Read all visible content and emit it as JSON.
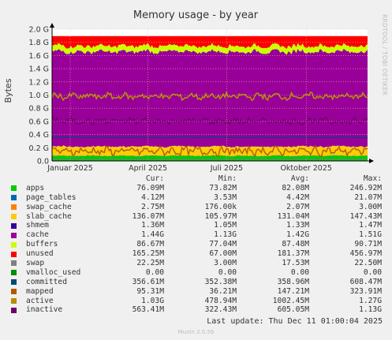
{
  "chart_data": {
    "type": "area",
    "title": "Memory usage - by year",
    "ylabel": "Bytes",
    "side_label": "RRDTOOL / TOBI OETIKER",
    "ylim": [
      0,
      2.0
    ],
    "y_unit": "G",
    "yticks": [
      "0.0",
      "0.2 G",
      "0.4 G",
      "0.6 G",
      "0.8 G",
      "1.0 G",
      "1.2 G",
      "1.4 G",
      "1.6 G",
      "1.8 G",
      "2.0 G"
    ],
    "x_range": [
      "2024-12-11",
      "2025-12-11"
    ],
    "x_ticks": [
      {
        "label": "Januar 2025",
        "date": "2025-01-01"
      },
      {
        "label": "April 2025",
        "date": "2025-04-01"
      },
      {
        "label": "Juli 2025",
        "date": "2025-07-01"
      },
      {
        "label": "Oktober 2025",
        "date": "2025-10-01"
      }
    ],
    "grid": true,
    "legend_placement": "bottom",
    "series": [
      {
        "name": "apps",
        "color": "#00cc00",
        "value_gb": 0.076
      },
      {
        "name": "page_tables",
        "color": "#0066b3",
        "value_gb": 0.004
      },
      {
        "name": "swap_cache",
        "color": "#ff8000",
        "value_gb": 0.003
      },
      {
        "name": "slab_cache",
        "color": "#ffcc00",
        "value_gb": 0.136
      },
      {
        "name": "shmem",
        "color": "#330099",
        "value_gb": 0.001
      },
      {
        "name": "cache",
        "color": "#990099",
        "value_gb": 1.44
      },
      {
        "name": "buffers",
        "color": "#ccff00",
        "value_gb": 0.087
      },
      {
        "name": "unused",
        "color": "#ff0000",
        "value_gb": 0.165
      },
      {
        "name": "swap",
        "color": "#808080",
        "value_gb": 0.022
      },
      {
        "name": "vmalloc_used",
        "color": "#008f00",
        "value_gb": 0
      },
      {
        "name": "committed",
        "color": "#00487d",
        "value_gb": 0.357
      },
      {
        "name": "mapped",
        "color": "#b35a00",
        "value_gb": 0.095
      },
      {
        "name": "active",
        "color": "#b38f00",
        "value_gb": 1.03
      },
      {
        "name": "inactive",
        "color": "#6b006b",
        "value_gb": 0.563
      }
    ]
  },
  "legend": {
    "headers": {
      "cur": "Cur:",
      "min": "Min:",
      "avg": "Avg:",
      "max": "Max:"
    },
    "rows": [
      {
        "name": "apps",
        "color": "#00cc00",
        "cur": "76.09M",
        "min": "73.82M",
        "avg": "82.08M",
        "max": "246.92M"
      },
      {
        "name": "page_tables",
        "color": "#0066b3",
        "cur": "4.12M",
        "min": "3.53M",
        "avg": "4.42M",
        "max": "21.07M"
      },
      {
        "name": "swap_cache",
        "color": "#ff8000",
        "cur": "2.75M",
        "min": "176.00k",
        "avg": "2.07M",
        "max": "3.00M"
      },
      {
        "name": "slab_cache",
        "color": "#ffcc00",
        "cur": "136.07M",
        "min": "105.97M",
        "avg": "131.04M",
        "max": "147.43M"
      },
      {
        "name": "shmem",
        "color": "#330099",
        "cur": "1.36M",
        "min": "1.05M",
        "avg": "1.33M",
        "max": "1.47M"
      },
      {
        "name": "cache",
        "color": "#990099",
        "cur": "1.44G",
        "min": "1.13G",
        "avg": "1.42G",
        "max": "1.51G"
      },
      {
        "name": "buffers",
        "color": "#ccff00",
        "cur": "86.67M",
        "min": "77.04M",
        "avg": "87.48M",
        "max": "90.71M"
      },
      {
        "name": "unused",
        "color": "#ff0000",
        "cur": "165.25M",
        "min": "67.00M",
        "avg": "181.37M",
        "max": "456.97M"
      },
      {
        "name": "swap",
        "color": "#808080",
        "cur": "22.25M",
        "min": "3.00M",
        "avg": "17.53M",
        "max": "22.50M"
      },
      {
        "name": "vmalloc_used",
        "color": "#008f00",
        "cur": "0.00",
        "min": "0.00",
        "avg": "0.00",
        "max": "0.00"
      },
      {
        "name": "committed",
        "color": "#00487d",
        "cur": "356.61M",
        "min": "352.38M",
        "avg": "358.96M",
        "max": "608.47M"
      },
      {
        "name": "mapped",
        "color": "#b35a00",
        "cur": "95.31M",
        "min": "36.21M",
        "avg": "147.21M",
        "max": "323.91M"
      },
      {
        "name": "active",
        "color": "#b38f00",
        "cur": "1.03G",
        "min": "478.94M",
        "avg": "1002.45M",
        "max": "1.27G"
      },
      {
        "name": "inactive",
        "color": "#6b006b",
        "cur": "563.41M",
        "min": "322.43M",
        "avg": "605.05M",
        "max": "1.13G"
      }
    ]
  },
  "last_update": "Last update: Thu Dec 11 01:00:04 2025",
  "footer": "Munin 2.0.56"
}
